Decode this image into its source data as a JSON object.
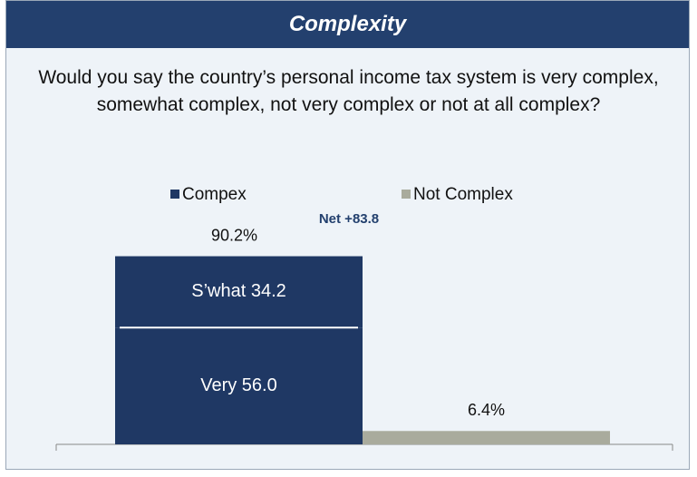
{
  "chart_data": {
    "type": "bar",
    "title": "Complexity",
    "subtitle": "Would you say the country’s personal income tax system is very complex, somewhat complex, not very complex or not at all complex?",
    "annotation": "Net +83.8",
    "ylim": [
      0,
      100
    ],
    "series": [
      {
        "name": "Compex",
        "color": "#1f3864",
        "values": [
          90.2,
          null
        ],
        "value_labels": [
          "90.2%",
          null
        ],
        "segments": [
          {
            "name": "Very",
            "value": 56.0,
            "label": "Very 56.0"
          },
          {
            "name": "S’what",
            "value": 34.2,
            "label": "S’what 34.2"
          }
        ]
      },
      {
        "name": "Not Complex",
        "color": "#a9ab9d",
        "values": [
          null,
          6.4
        ],
        "value_labels": [
          null,
          "6.4%"
        ]
      }
    ]
  }
}
